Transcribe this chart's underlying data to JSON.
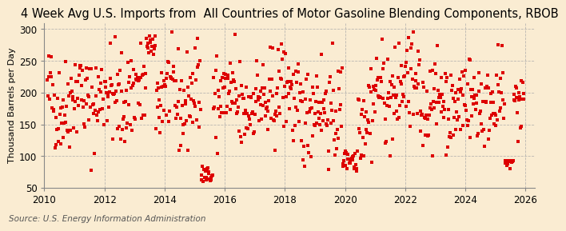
{
  "title": "4 Week Avg U.S. Imports from  All Countries of Motor Gasoline Blending Components, RBOB",
  "ylabel": "Thousand Barrels per Day",
  "source": "Source: U.S. Energy Information Administration",
  "xlim": [
    2010.0,
    2026.3
  ],
  "ylim": [
    50,
    310
  ],
  "yticks": [
    50,
    100,
    150,
    200,
    250,
    300
  ],
  "xticks": [
    2010,
    2012,
    2014,
    2016,
    2018,
    2020,
    2022,
    2024,
    2026
  ],
  "marker_color": "#dd0000",
  "background_color": "#faecd2",
  "grid_color": "#aaaaaa",
  "title_fontsize": 10.5,
  "ylabel_fontsize": 8.0,
  "source_fontsize": 7.5,
  "tick_fontsize": 8.5,
  "seed": 42,
  "n_points": 800
}
